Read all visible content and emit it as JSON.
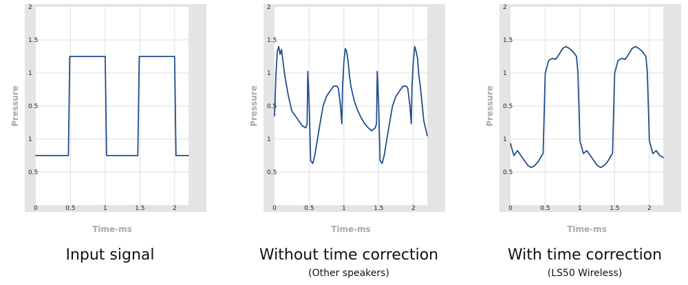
{
  "chart_data": [
    {
      "type": "line",
      "caption": "Input signal",
      "subcaption": "",
      "xlabel": "Time-ms",
      "ylabel": "Pressure",
      "xlim": [
        0,
        2.2
      ],
      "ylim": [
        0,
        2
      ],
      "x_ticks": [
        "0",
        "0.5",
        "1",
        "1.5",
        "2"
      ],
      "y_ticks": [
        "",
        "0.5",
        "1",
        "0.5",
        "1",
        "1.5",
        "2"
      ],
      "grid": true,
      "color": "#1f4e8c",
      "series": [
        {
          "x": [
            0,
            0.47,
            0.49,
            1.0,
            1.02,
            1.47,
            1.49,
            2.0,
            2.02,
            2.2
          ],
          "y": [
            0.5,
            0.5,
            1.5,
            1.5,
            0.5,
            0.5,
            1.5,
            1.5,
            0.5,
            0.5
          ]
        }
      ]
    },
    {
      "type": "line",
      "caption": "Without time correction",
      "subcaption": "(Other speakers)",
      "xlabel": "Time-ms",
      "ylabel": "Pressure",
      "xlim": [
        0,
        2.2
      ],
      "ylim": [
        0,
        2
      ],
      "x_ticks": [
        "0",
        "0.5",
        "1",
        "1.5",
        "2"
      ],
      "y_ticks": [
        "",
        "0.5",
        "1",
        "0.5",
        "1",
        "1.5",
        "2"
      ],
      "grid": true,
      "color": "#1f4e8c",
      "series": [
        {
          "x": [
            0,
            0.02,
            0.04,
            0.06,
            0.08,
            0.1,
            0.15,
            0.2,
            0.25,
            0.3,
            0.35,
            0.4,
            0.45,
            0.47,
            0.48,
            0.5,
            0.52,
            0.55,
            0.58,
            0.65,
            0.7,
            0.75,
            0.8,
            0.85,
            0.9,
            0.92,
            0.95,
            0.97,
            0.98,
            1.0,
            1.02,
            1.04,
            1.06,
            1.08,
            1.1,
            1.15,
            1.2,
            1.25,
            1.3,
            1.35,
            1.4,
            1.45,
            1.47,
            1.48,
            1.5,
            1.52,
            1.55,
            1.58,
            1.65,
            1.7,
            1.75,
            1.8,
            1.85,
            1.9,
            1.92,
            1.95,
            1.97,
            1.98,
            2.0,
            2.02,
            2.04,
            2.06,
            2.08,
            2.1,
            2.15,
            2.2
          ],
          "y": [
            0.9,
            1.3,
            1.55,
            1.6,
            1.52,
            1.57,
            1.3,
            1.1,
            0.95,
            0.9,
            0.85,
            0.8,
            0.78,
            0.82,
            1.35,
            1.0,
            0.45,
            0.42,
            0.5,
            0.8,
            1.0,
            1.1,
            1.15,
            1.2,
            1.2,
            1.18,
            1.0,
            0.82,
            1.2,
            1.45,
            1.58,
            1.55,
            1.45,
            1.3,
            1.2,
            1.05,
            0.95,
            0.88,
            0.82,
            0.78,
            0.75,
            0.78,
            0.82,
            1.35,
            1.0,
            0.45,
            0.42,
            0.5,
            0.8,
            1.0,
            1.1,
            1.15,
            1.2,
            1.2,
            1.18,
            1.0,
            0.82,
            1.2,
            1.45,
            1.6,
            1.55,
            1.48,
            1.3,
            1.2,
            0.85,
            0.7
          ]
        }
      ]
    },
    {
      "type": "line",
      "caption": "With time correction",
      "subcaption": "(LS50 Wireless)",
      "xlabel": "Time-ms",
      "ylabel": "Pressure",
      "xlim": [
        0,
        2.2
      ],
      "ylim": [
        0,
        2
      ],
      "x_ticks": [
        "0",
        "0.5",
        "1",
        "1.5",
        "2"
      ],
      "y_ticks": [
        "",
        "0.5",
        "1",
        "0.5",
        "1",
        "1.5",
        "2"
      ],
      "grid": true,
      "color": "#1f4e8c",
      "series": [
        {
          "x": [
            0,
            0.02,
            0.05,
            0.1,
            0.15,
            0.2,
            0.25,
            0.3,
            0.35,
            0.4,
            0.45,
            0.47,
            0.5,
            0.55,
            0.6,
            0.65,
            0.7,
            0.75,
            0.8,
            0.85,
            0.9,
            0.95,
            0.97,
            0.99,
            1.0,
            1.02,
            1.05,
            1.1,
            1.15,
            1.2,
            1.25,
            1.3,
            1.35,
            1.4,
            1.45,
            1.47,
            1.5,
            1.55,
            1.6,
            1.65,
            1.7,
            1.75,
            1.8,
            1.85,
            1.9,
            1.95,
            1.97,
            1.99,
            2.0,
            2.02,
            2.05,
            2.1,
            2.15,
            2.2
          ],
          "y": [
            0.62,
            0.57,
            0.5,
            0.55,
            0.5,
            0.45,
            0.4,
            0.38,
            0.4,
            0.44,
            0.5,
            0.52,
            1.33,
            1.46,
            1.48,
            1.47,
            1.52,
            1.58,
            1.6,
            1.58,
            1.55,
            1.5,
            1.35,
            0.9,
            0.65,
            0.6,
            0.52,
            0.55,
            0.5,
            0.45,
            0.4,
            0.38,
            0.4,
            0.44,
            0.5,
            0.52,
            1.33,
            1.46,
            1.48,
            1.47,
            1.52,
            1.58,
            1.6,
            1.58,
            1.55,
            1.5,
            1.35,
            0.9,
            0.65,
            0.6,
            0.52,
            0.55,
            0.5,
            0.48
          ]
        }
      ]
    }
  ]
}
